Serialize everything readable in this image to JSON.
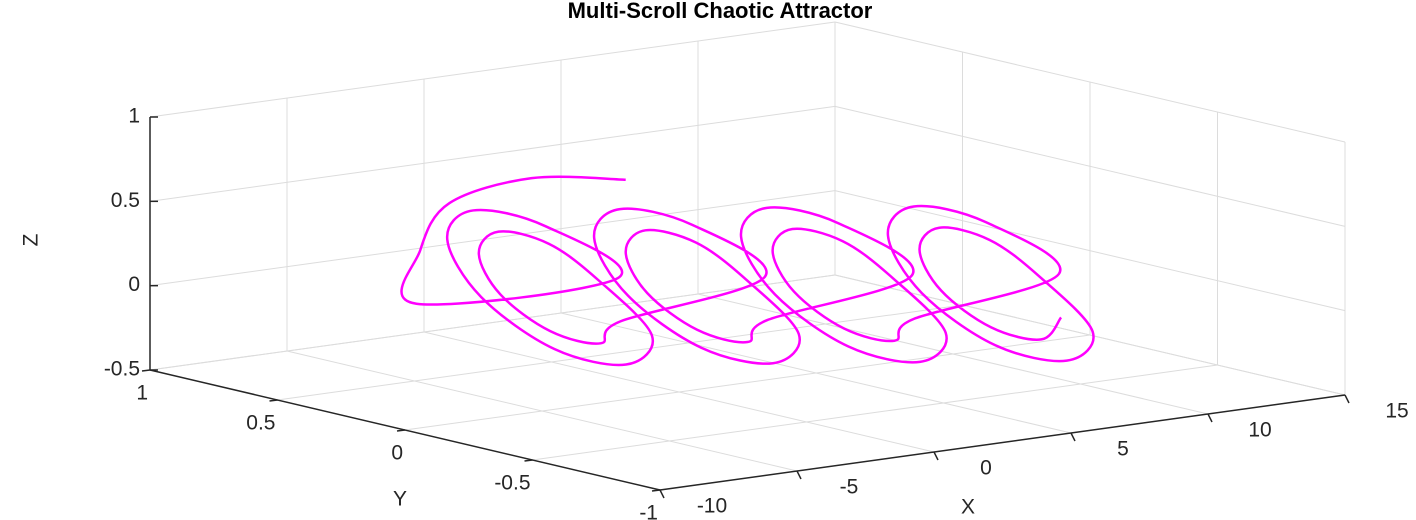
{
  "chart_data": {
    "type": "line3d",
    "title": "Multi-Scroll Chaotic Attractor",
    "xlabel": "X",
    "ylabel": "Y",
    "zlabel": "Z",
    "color": "#ff00ff",
    "grid": true,
    "xlim": [
      -10,
      15
    ],
    "ylim": [
      -1,
      1
    ],
    "zlim": [
      -0.5,
      1
    ],
    "xticks": [
      -10,
      -5,
      0,
      5,
      10,
      15
    ],
    "yticks": [
      -1,
      -0.5,
      0,
      0.5,
      1
    ],
    "zticks": [
      -0.5,
      0,
      0.5,
      1
    ],
    "x": [
      5.5,
      3,
      0,
      -2,
      -4,
      1.5,
      0.78,
      -1,
      -2.78,
      -3.5,
      -2.78,
      -1,
      0.78,
      0.8,
      0.28,
      -1,
      -2.28,
      -2.8,
      -2.28,
      -1,
      0.28,
      5,
      4.28,
      2.5,
      0.72,
      0,
      0.72,
      2.5,
      4.28,
      4.3,
      3.78,
      2.5,
      1.22,
      0.7,
      1.22,
      2.5,
      3.78,
      8.5,
      7.78,
      6,
      4.22,
      3.5,
      4.22,
      6,
      7.78,
      7.8,
      7.28,
      6,
      4.72,
      4.2,
      4.72,
      6,
      7.28,
      12,
      11.28,
      9.5,
      7.72,
      7,
      7.72,
      9.5,
      11.28,
      11.3,
      10.78,
      9.5,
      8.22,
      7.7,
      8.22,
      9.5,
      10.78
    ],
    "y": [
      0.8,
      0.9,
      0.9,
      0.8,
      0.6,
      0.4,
      0.61,
      0.7,
      0.61,
      0.4,
      0.19,
      0.1,
      0.19,
      0.4,
      0.54,
      0.6,
      0.54,
      0.4,
      0.26,
      0.2,
      0.26,
      0.2,
      0.41,
      0.5,
      0.41,
      0.2,
      -0.01,
      -0.1,
      -0.01,
      0.2,
      0.34,
      0.4,
      0.34,
      0.2,
      0.06,
      0,
      0.06,
      0,
      0.21,
      0.3,
      0.21,
      0,
      -0.21,
      -0.3,
      -0.21,
      0,
      0.14,
      0.2,
      0.14,
      0,
      -0.14,
      -0.2,
      -0.14,
      -0.2,
      0.01,
      0.1,
      0.01,
      -0.2,
      -0.41,
      -0.5,
      -0.41,
      -0.2,
      -0.06,
      0,
      -0.06,
      -0.2,
      -0.34,
      -0.4,
      -0.34
    ],
    "z": [
      0.35,
      0.38,
      0.3,
      0.1,
      -0.1,
      0,
      0.25,
      0.35,
      0.25,
      0,
      -0.25,
      -0.35,
      -0.25,
      0,
      0.18,
      0.26,
      0.18,
      0,
      -0.18,
      -0.26,
      -0.18,
      0,
      0.25,
      0.35,
      0.25,
      0,
      -0.25,
      -0.35,
      -0.25,
      0,
      0.18,
      0.26,
      0.18,
      0,
      -0.18,
      -0.26,
      -0.18,
      0,
      0.25,
      0.35,
      0.25,
      0,
      -0.25,
      -0.35,
      -0.25,
      0,
      0.18,
      0.26,
      0.18,
      0,
      -0.18,
      -0.26,
      -0.18,
      0,
      0.25,
      0.35,
      0.25,
      0,
      -0.25,
      -0.35,
      -0.25,
      0,
      0.18,
      0.26,
      0.18,
      0,
      -0.18,
      -0.26,
      -0.18
    ]
  }
}
